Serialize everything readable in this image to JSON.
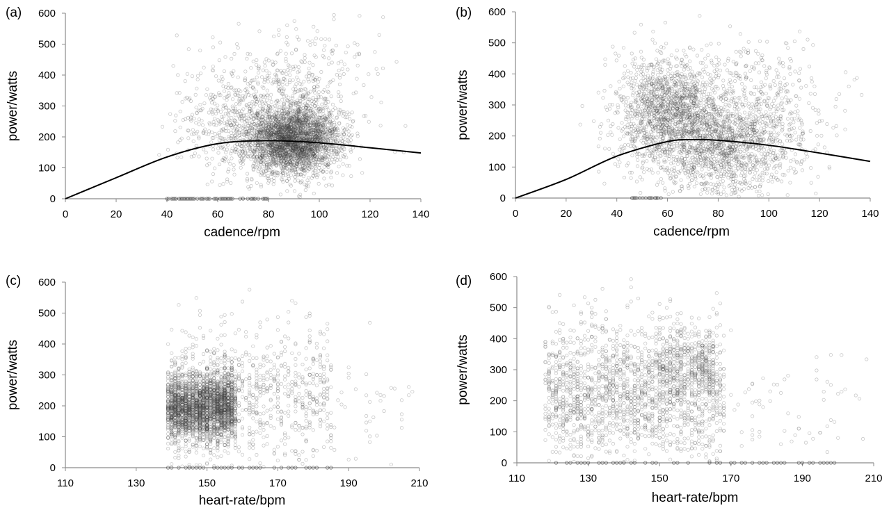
{
  "chart_data": [
    {
      "panel": "(a)",
      "type": "scatter",
      "xlabel": "cadence/rpm",
      "ylabel": "power/watts",
      "xlim": [
        0,
        140
      ],
      "ylim": [
        0,
        600
      ],
      "xticks": [
        0,
        20,
        40,
        60,
        80,
        100,
        120,
        140
      ],
      "yticks": [
        0,
        100,
        200,
        300,
        400,
        500,
        600
      ],
      "grid": false,
      "legend": "none",
      "series": [
        {
          "kind": "points",
          "description_clusters": [
            {
              "x_mean": 90,
              "x_sd": 9,
              "y_mean": 190,
              "y_sd": 55,
              "n": 2600
            },
            {
              "x_mean": 72,
              "x_sd": 14,
              "y_mean": 250,
              "y_sd": 95,
              "n": 700
            },
            {
              "x_mean": 95,
              "x_sd": 14,
              "y_mean": 330,
              "y_sd": 120,
              "n": 350
            }
          ],
          "zero_points_x_range": [
            40,
            80
          ]
        },
        {
          "kind": "fitted-curve",
          "x": [
            0,
            20,
            40,
            60,
            80,
            100,
            120,
            140
          ],
          "y": [
            0,
            68,
            135,
            178,
            188,
            181,
            165,
            148
          ]
        }
      ]
    },
    {
      "panel": "(b)",
      "type": "scatter",
      "xlabel": "cadence/rpm",
      "ylabel": "power/watts",
      "xlim": [
        0,
        140
      ],
      "ylim": [
        0,
        600
      ],
      "xticks": [
        0,
        20,
        40,
        60,
        80,
        100,
        120,
        140
      ],
      "yticks": [
        0,
        100,
        200,
        300,
        400,
        500,
        600
      ],
      "grid": false,
      "legend": "none",
      "series": [
        {
          "kind": "points",
          "description_clusters": [
            {
              "x_mean": 60,
              "x_sd": 10,
              "y_mean": 290,
              "y_sd": 85,
              "n": 1300
            },
            {
              "x_mean": 80,
              "x_sd": 15,
              "y_mean": 170,
              "y_sd": 80,
              "n": 1400
            },
            {
              "x_mean": 95,
              "x_sd": 15,
              "y_mean": 300,
              "y_sd": 110,
              "n": 400
            }
          ],
          "zero_points_x_range": [
            46,
            58
          ]
        },
        {
          "kind": "fitted-curve",
          "x": [
            0,
            20,
            40,
            60,
            70,
            80,
            100,
            120,
            140
          ],
          "y": [
            0,
            60,
            135,
            182,
            188,
            186,
            170,
            145,
            118
          ]
        }
      ]
    },
    {
      "panel": "(c)",
      "type": "scatter",
      "xlabel": "heart-rate/bpm",
      "ylabel": "power/watts",
      "xlim": [
        110,
        210
      ],
      "ylim": [
        0,
        600
      ],
      "xticks": [
        110,
        130,
        150,
        170,
        190,
        210
      ],
      "yticks": [
        0,
        100,
        200,
        300,
        400,
        500,
        600
      ],
      "grid": false,
      "legend": "none",
      "series": [
        {
          "kind": "points",
          "description_clusters": [
            {
              "x_min": 139,
              "x_max": 158,
              "y_mean": 195,
              "y_sd": 55,
              "n": 2400
            },
            {
              "x_min": 139,
              "x_max": 185,
              "y_mean": 240,
              "y_sd": 110,
              "n": 900
            },
            {
              "x_min": 185,
              "x_max": 209,
              "y_mean": 230,
              "y_sd": 110,
              "n": 40
            }
          ],
          "zero_points_x_range": [
            139,
            185
          ]
        }
      ]
    },
    {
      "panel": "(d)",
      "type": "scatter",
      "xlabel": "heart-rate/bpm",
      "ylabel": "power/watts",
      "xlim": [
        110,
        210
      ],
      "ylim": [
        0,
        600
      ],
      "xticks": [
        110,
        130,
        150,
        170,
        190,
        210
      ],
      "yticks": [
        0,
        100,
        200,
        300,
        400,
        500,
        600
      ],
      "grid": false,
      "legend": "none",
      "series": [
        {
          "kind": "points",
          "description_clusters": [
            {
              "x_min": 118,
              "x_max": 168,
              "y_mean": 230,
              "y_sd": 110,
              "n": 1900
            },
            {
              "x_min": 150,
              "x_max": 165,
              "y_mean": 320,
              "y_sd": 60,
              "n": 300
            },
            {
              "x_min": 168,
              "x_max": 210,
              "y_mean": 170,
              "y_sd": 110,
              "n": 70
            }
          ],
          "zero_points_x_range": [
            118,
            200
          ]
        }
      ]
    }
  ]
}
